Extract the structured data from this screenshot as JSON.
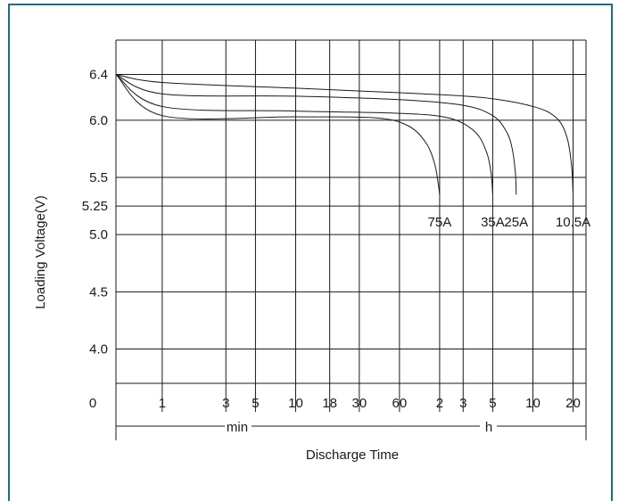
{
  "chart_data": {
    "type": "line",
    "title": "",
    "ylabel": "Loading Voltage(V)",
    "xlabel": "Discharge Time",
    "y_ticks": [
      {
        "label": "6.4",
        "value": 6.4
      },
      {
        "label": "6.0",
        "value": 6.0
      },
      {
        "label": "5.5",
        "value": 5.5
      },
      {
        "label": "5.25",
        "value": 5.25
      },
      {
        "label": "5.0",
        "value": 5.0
      },
      {
        "label": "4.5",
        "value": 4.5
      },
      {
        "label": "4.0",
        "value": 4.0
      }
    ],
    "y_zero_label": "0",
    "ylim": [
      3.7,
      6.7
    ],
    "x_scale": "log",
    "x_unit": "min",
    "xlim_minutes": [
      0.45,
      1500
    ],
    "x_ticks": [
      {
        "label": "1",
        "minutes": 1
      },
      {
        "label": "3",
        "minutes": 3
      },
      {
        "label": "5",
        "minutes": 5
      },
      {
        "label": "10",
        "minutes": 10
      },
      {
        "label": "18",
        "minutes": 18
      },
      {
        "label": "30",
        "minutes": 30
      },
      {
        "label": "60",
        "minutes": 60
      },
      {
        "label": "2",
        "minutes": 120
      },
      {
        "label": "3",
        "minutes": 180
      },
      {
        "label": "5",
        "minutes": 300
      },
      {
        "label": "10",
        "minutes": 600
      },
      {
        "label": "20",
        "minutes": 1200
      }
    ],
    "unit_labels": {
      "minutes": "min",
      "hours": "h"
    },
    "grid": true,
    "series": [
      {
        "name": "10.5A",
        "points": [
          [
            0.45,
            6.4
          ],
          [
            1,
            6.33
          ],
          [
            10,
            6.28
          ],
          [
            60,
            6.24
          ],
          [
            240,
            6.2
          ],
          [
            600,
            6.12
          ],
          [
            900,
            6.02
          ],
          [
            1080,
            5.85
          ],
          [
            1170,
            5.6
          ],
          [
            1200,
            5.35
          ]
        ]
      },
      {
        "name": "25A",
        "points": [
          [
            0.45,
            6.4
          ],
          [
            1,
            6.23
          ],
          [
            10,
            6.21
          ],
          [
            60,
            6.18
          ],
          [
            180,
            6.13
          ],
          [
            300,
            6.04
          ],
          [
            380,
            5.9
          ],
          [
            420,
            5.75
          ],
          [
            444,
            5.53
          ],
          [
            450,
            5.35
          ]
        ]
      },
      {
        "name": "35A",
        "points": [
          [
            0.45,
            6.4
          ],
          [
            1,
            6.12
          ],
          [
            10,
            6.08
          ],
          [
            60,
            6.06
          ],
          [
            140,
            6.02
          ],
          [
            220,
            5.9
          ],
          [
            270,
            5.72
          ],
          [
            292,
            5.53
          ],
          [
            300,
            5.35
          ]
        ]
      },
      {
        "name": "75A",
        "points": [
          [
            0.45,
            6.4
          ],
          [
            1,
            6.04
          ],
          [
            10,
            6.03
          ],
          [
            40,
            6.02
          ],
          [
            70,
            5.95
          ],
          [
            95,
            5.8
          ],
          [
            110,
            5.62
          ],
          [
            117,
            5.45
          ],
          [
            120,
            5.35
          ]
        ]
      }
    ]
  }
}
